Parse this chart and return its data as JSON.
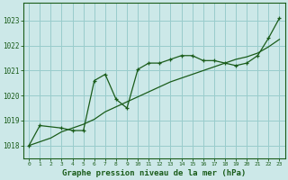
{
  "title": "Graphe pression niveau de la mer (hPa)",
  "bg_color": "#cce8e8",
  "grid_color": "#99cccc",
  "line_color": "#1a5c1a",
  "xlim": [
    -0.5,
    23.5
  ],
  "ylim": [
    1017.5,
    1023.7
  ],
  "yticks": [
    1018,
    1019,
    1020,
    1021,
    1022,
    1023
  ],
  "xticks": [
    0,
    1,
    2,
    3,
    4,
    5,
    6,
    7,
    8,
    9,
    10,
    11,
    12,
    13,
    14,
    15,
    16,
    17,
    18,
    19,
    20,
    21,
    22,
    23
  ],
  "series1_x": [
    0,
    1,
    3,
    4,
    5,
    6,
    7,
    8,
    9,
    10,
    11,
    12,
    13,
    14,
    15,
    16,
    17,
    18,
    19,
    20,
    21,
    22,
    23
  ],
  "series1_y": [
    1018.0,
    1018.8,
    1018.7,
    1018.6,
    1018.6,
    1020.6,
    1020.85,
    1019.85,
    1019.5,
    1021.05,
    1021.3,
    1021.3,
    1021.45,
    1021.6,
    1021.6,
    1021.4,
    1021.4,
    1021.3,
    1021.2,
    1021.3,
    1021.6,
    1022.3,
    1023.1
  ],
  "series2_x": [
    0,
    1,
    2,
    3,
    4,
    5,
    6,
    7,
    8,
    9,
    10,
    11,
    12,
    13,
    14,
    15,
    16,
    17,
    18,
    19,
    20,
    21,
    22,
    23
  ],
  "series2_y": [
    1018.0,
    1018.15,
    1018.3,
    1018.55,
    1018.7,
    1018.85,
    1019.05,
    1019.35,
    1019.55,
    1019.75,
    1019.95,
    1020.15,
    1020.35,
    1020.55,
    1020.7,
    1020.85,
    1021.0,
    1021.15,
    1021.3,
    1021.45,
    1021.55,
    1021.7,
    1021.95,
    1022.25
  ]
}
